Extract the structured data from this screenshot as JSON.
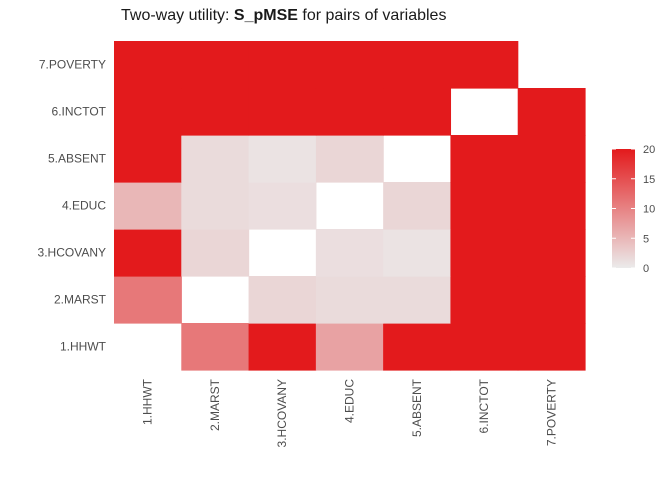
{
  "chart_data": {
    "type": "heatmap",
    "title_prefix": "Two-way utility: ",
    "title_metric": "S_pMSE",
    "title_suffix": " for pairs of variables",
    "xlabel": "",
    "ylabel": "",
    "x_categories": [
      "1.HHWT",
      "2.MARST",
      "3.HCOVANY",
      "4.EDUC",
      "5.ABSENT",
      "6.INCTOT",
      "7.POVERTY"
    ],
    "y_categories": [
      "1.HHWT",
      "2.MARST",
      "3.HCOVANY",
      "4.EDUC",
      "5.ABSENT",
      "6.INCTOT",
      "7.POVERTY"
    ],
    "values": [
      [
        null,
        11,
        20,
        7,
        20,
        20,
        20
      ],
      [
        11,
        null,
        2,
        1.5,
        1.5,
        20,
        20
      ],
      [
        20,
        2,
        null,
        1.2,
        0.8,
        20,
        20
      ],
      [
        5,
        1.5,
        1.2,
        null,
        2,
        20,
        20
      ],
      [
        20,
        1.5,
        0.8,
        2,
        null,
        20,
        20
      ],
      [
        20,
        20,
        20,
        20,
        20,
        null,
        20
      ],
      [
        20,
        20,
        20,
        20,
        20,
        20,
        null
      ]
    ],
    "legend": {
      "position": "right",
      "ticks": [
        0,
        5,
        10,
        15,
        20
      ],
      "range": [
        0,
        20
      ],
      "color_low": "#ebebeb",
      "color_high": "#e31a1c"
    },
    "grid": false
  }
}
